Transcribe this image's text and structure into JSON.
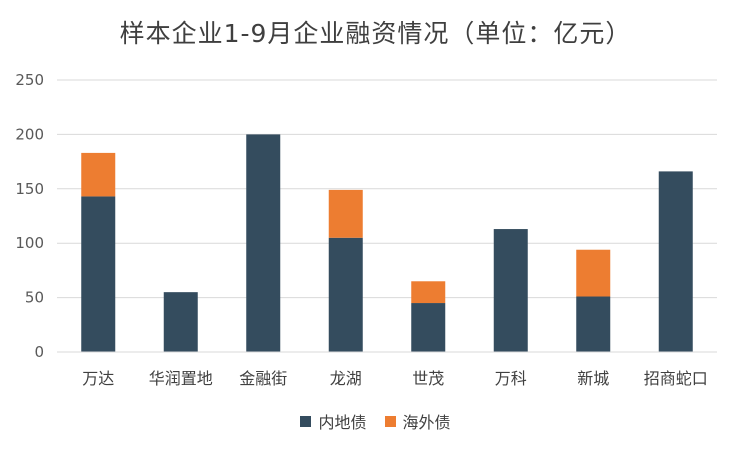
{
  "chart_data": {
    "type": "bar",
    "stacked": true,
    "title": "样本企业1-9月企业融资情况（单位：亿元）",
    "categories": [
      "万达",
      "华润置地",
      "金融街",
      "龙湖",
      "世茂",
      "万科",
      "新城",
      "招商蛇口"
    ],
    "series": [
      {
        "name": "内地债",
        "color": "#344c5e",
        "values": [
          143,
          55,
          200,
          105,
          45,
          113,
          51,
          166
        ]
      },
      {
        "name": "海外债",
        "color": "#ed7d31",
        "values": [
          40,
          0,
          0,
          44,
          20,
          0,
          43,
          0
        ]
      }
    ],
    "ylim": [
      0,
      250
    ],
    "yticks": [
      0,
      50,
      100,
      150,
      200,
      250
    ],
    "grid": true,
    "legend": "bottom"
  }
}
